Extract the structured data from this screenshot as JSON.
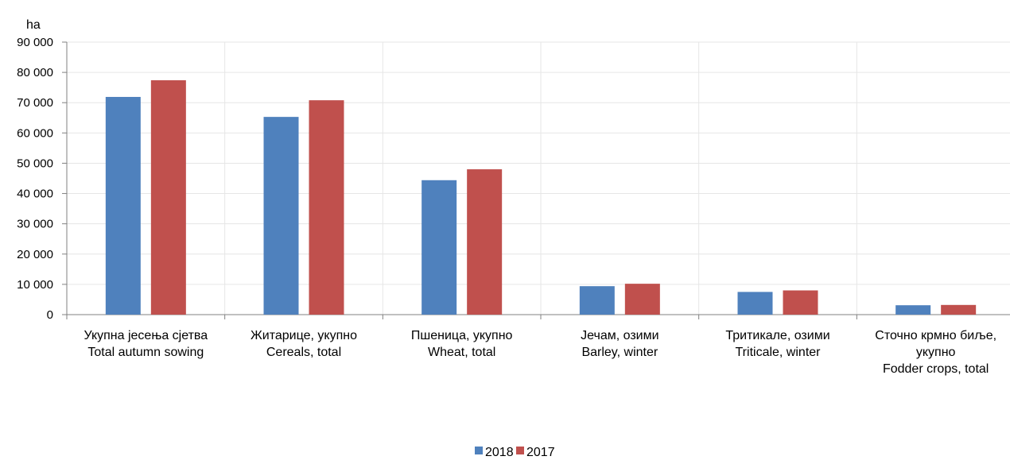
{
  "chart_data": {
    "type": "bar",
    "title": "",
    "ylabel": "ha",
    "ylim": [
      0,
      90000
    ],
    "yticks": [
      "0",
      "10 000",
      "20 000",
      "30 000",
      "40 000",
      "50 000",
      "60 000",
      "70 000",
      "80 000",
      "90 000"
    ],
    "categories": [
      [
        "Укупна јесења сјетва",
        "Total autumn sowing"
      ],
      [
        "Житарице, укупно",
        "Cereals, total"
      ],
      [
        "Пшеница, укупно",
        "Wheat, total"
      ],
      [
        "Јечам, озими",
        "Barley, winter"
      ],
      [
        "Тритикале, озими",
        "Triticale, winter"
      ],
      [
        "Сточно крмно биље,",
        "укупно",
        "Fodder crops, total"
      ]
    ],
    "series": [
      {
        "name": "2018",
        "color": "#4f81bd",
        "values": [
          71900,
          65300,
          44400,
          9400,
          7500,
          3100
        ]
      },
      {
        "name": "2017",
        "color": "#c0504d",
        "values": [
          77400,
          70800,
          48000,
          10200,
          8000,
          3200
        ]
      }
    ],
    "grid": true,
    "legend_position": "bottom-center"
  }
}
